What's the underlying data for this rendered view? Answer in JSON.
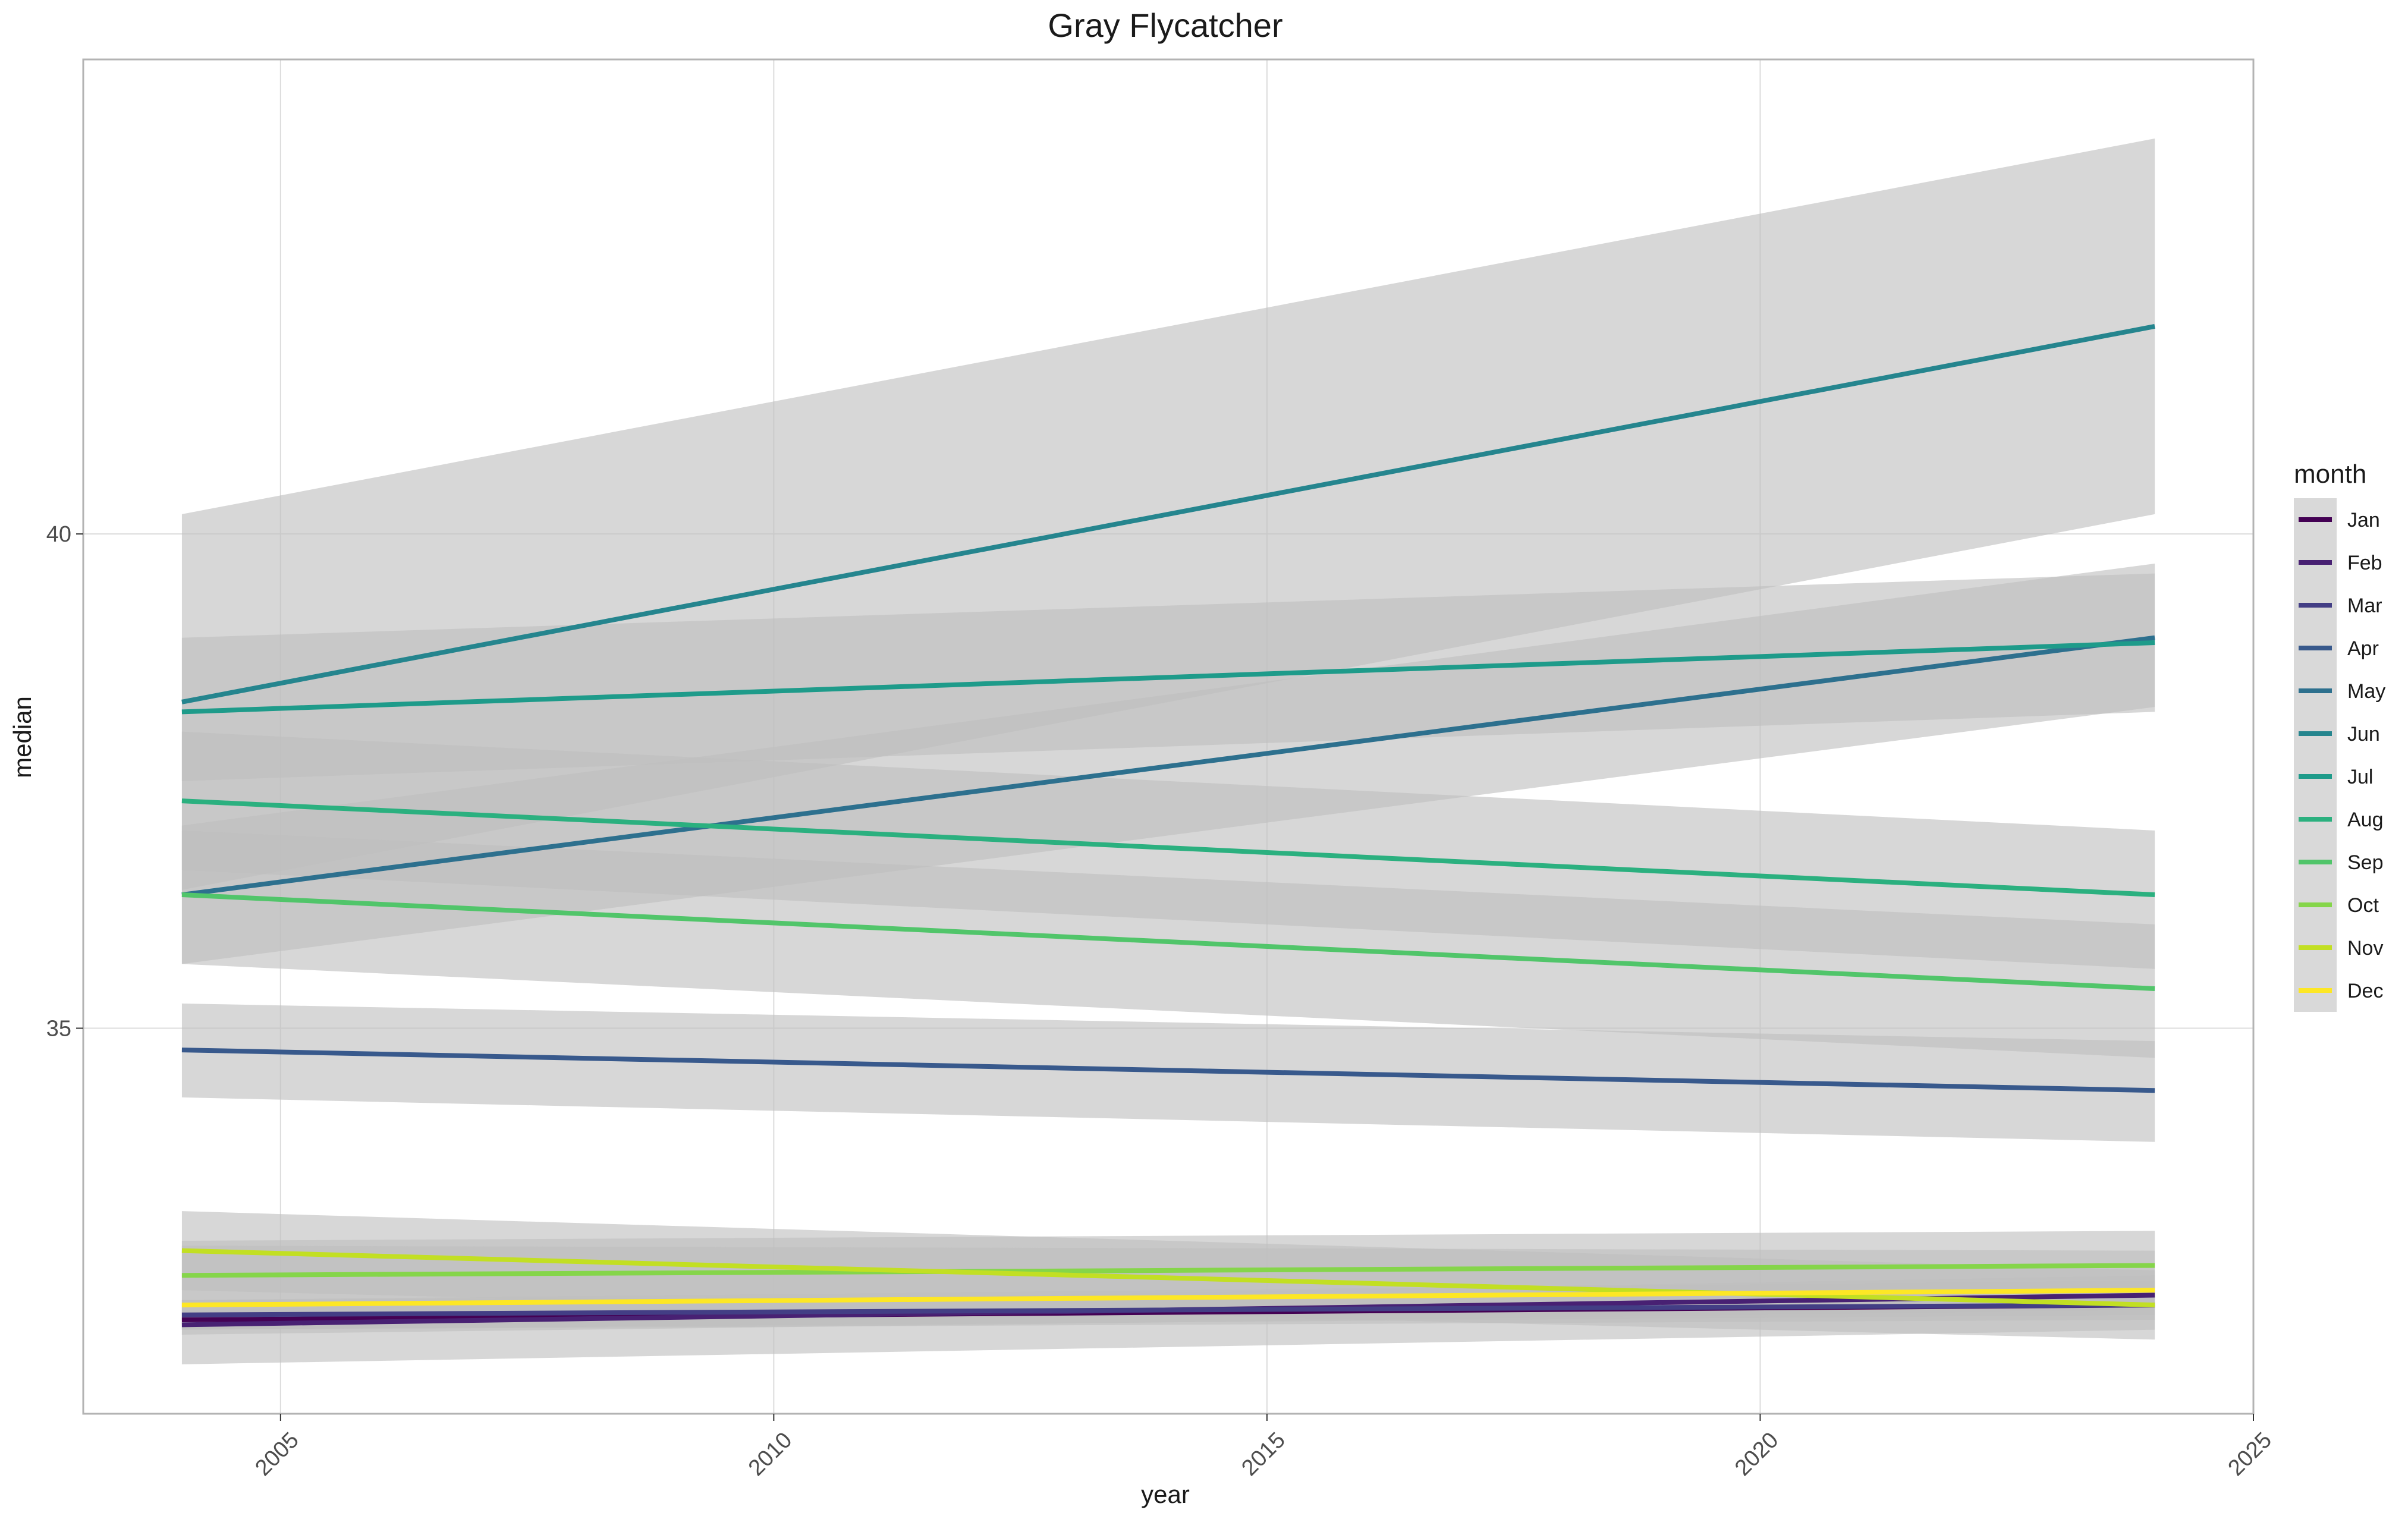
{
  "chart_data": {
    "type": "line",
    "title": "Gray Flycatcher",
    "xlabel": "year",
    "ylabel": "median",
    "xlim": [
      2003,
      2025
    ],
    "ylim": [
      31.1,
      44.8
    ],
    "xticks": [
      2005,
      2010,
      2015,
      2020,
      2025
    ],
    "yticks": [
      35,
      40
    ],
    "grid": true,
    "legend": {
      "title": "month",
      "position": "right"
    },
    "x_range": [
      2004,
      2024
    ],
    "band_color": "#bebebe",
    "series": [
      {
        "name": "Jan",
        "color": "#440154",
        "x": [
          2004,
          2024
        ],
        "y": [
          32.05,
          32.2
        ],
        "ci_lower": [
          31.95,
          32.05
        ],
        "ci_upper": [
          32.25,
          32.45
        ]
      },
      {
        "name": "Feb",
        "color": "#482173",
        "x": [
          2004,
          2024
        ],
        "y": [
          32.0,
          32.3
        ],
        "ci_lower": [
          31.9,
          32.15
        ],
        "ci_upper": [
          32.15,
          32.5
        ]
      },
      {
        "name": "Mar",
        "color": "#433E85",
        "x": [
          2004,
          2024
        ],
        "y": [
          32.1,
          32.2
        ],
        "ci_lower": [
          31.95,
          32.1
        ],
        "ci_upper": [
          32.25,
          32.35
        ]
      },
      {
        "name": "Apr",
        "color": "#38598C",
        "x": [
          2004,
          2024
        ],
        "y": [
          34.78,
          34.37
        ],
        "ci_lower": [
          34.3,
          33.85
        ],
        "ci_upper": [
          35.25,
          34.87
        ]
      },
      {
        "name": "May",
        "color": "#2D708E",
        "x": [
          2004,
          2024
        ],
        "y": [
          36.35,
          38.95
        ],
        "ci_lower": [
          35.65,
          38.25
        ],
        "ci_upper": [
          37.05,
          39.7
        ]
      },
      {
        "name": "Jun",
        "color": "#25858E",
        "x": [
          2004,
          2024
        ],
        "y": [
          38.3,
          42.1
        ],
        "ci_lower": [
          36.4,
          40.2
        ],
        "ci_upper": [
          40.2,
          44.0
        ]
      },
      {
        "name": "Jul",
        "color": "#1E9B8A",
        "x": [
          2004,
          2024
        ],
        "y": [
          38.2,
          38.9
        ],
        "ci_lower": [
          37.5,
          38.2
        ],
        "ci_upper": [
          38.95,
          39.6
        ]
      },
      {
        "name": "Aug",
        "color": "#2BB07F",
        "x": [
          2004,
          2024
        ],
        "y": [
          37.3,
          36.35
        ],
        "ci_lower": [
          36.6,
          35.6
        ],
        "ci_upper": [
          38.0,
          37.0
        ]
      },
      {
        "name": "Sep",
        "color": "#51C56A",
        "x": [
          2004,
          2024
        ],
        "y": [
          36.35,
          35.4
        ],
        "ci_lower": [
          35.65,
          34.7
        ],
        "ci_upper": [
          37.0,
          36.05
        ]
      },
      {
        "name": "Oct",
        "color": "#85D54A",
        "x": [
          2004,
          2024
        ],
        "y": [
          32.5,
          32.6
        ],
        "ci_lower": [
          32.1,
          32.25
        ],
        "ci_upper": [
          32.85,
          32.95
        ]
      },
      {
        "name": "Nov",
        "color": "#C2DF23",
        "x": [
          2004,
          2024
        ],
        "y": [
          32.75,
          32.2
        ],
        "ci_lower": [
          32.35,
          31.85
        ],
        "ci_upper": [
          33.15,
          32.55
        ]
      },
      {
        "name": "Dec",
        "color": "#FDE725",
        "x": [
          2004,
          2024
        ],
        "y": [
          32.2,
          32.35
        ],
        "ci_lower": [
          31.6,
          31.95
        ],
        "ci_upper": [
          32.8,
          32.75
        ]
      }
    ]
  }
}
